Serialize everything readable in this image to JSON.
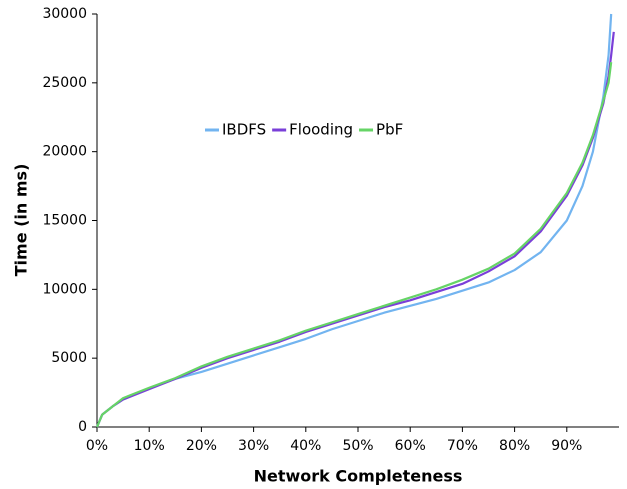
{
  "chart_data": {
    "type": "line",
    "x_label": "Network Completeness",
    "y_label": "Time (in ms)",
    "xlim": [
      0,
      100
    ],
    "ylim": [
      0,
      30000
    ],
    "xticks": [
      {
        "value": 0,
        "label": "0%"
      },
      {
        "value": 10,
        "label": "10%"
      },
      {
        "value": 20,
        "label": "20%"
      },
      {
        "value": 30,
        "label": "30%"
      },
      {
        "value": 40,
        "label": "40%"
      },
      {
        "value": 50,
        "label": "50%"
      },
      {
        "value": 60,
        "label": "60%"
      },
      {
        "value": 70,
        "label": "70%"
      },
      {
        "value": 80,
        "label": "80%"
      },
      {
        "value": 90,
        "label": "90%"
      }
    ],
    "yticks": [
      0,
      5000,
      10000,
      15000,
      20000,
      25000,
      30000
    ],
    "legend": "upper center",
    "grid": false,
    "series": [
      {
        "name": "IBDFS",
        "color": "#72b4f0",
        "x": [
          0,
          1,
          3,
          5,
          10,
          15,
          20,
          25,
          30,
          35,
          40,
          45,
          50,
          55,
          60,
          65,
          70,
          75,
          80,
          85,
          90,
          93,
          95,
          97,
          98,
          98.5
        ],
        "values": [
          0,
          900,
          1500,
          2000,
          2800,
          3500,
          4000,
          4600,
          5200,
          5800,
          6400,
          7100,
          7700,
          8300,
          8800,
          9300,
          9900,
          10500,
          11400,
          12700,
          15000,
          17500,
          20000,
          24000,
          27000,
          30000
        ]
      },
      {
        "name": "Flooding",
        "color": "#7a3fd8",
        "x": [
          0,
          1,
          3,
          5,
          10,
          15,
          20,
          25,
          30,
          35,
          40,
          45,
          50,
          55,
          60,
          65,
          70,
          75,
          80,
          85,
          90,
          93,
          95,
          97,
          98,
          98.5,
          99
        ],
        "values": [
          0,
          900,
          1500,
          2000,
          2750,
          3500,
          4300,
          5000,
          5600,
          6200,
          6900,
          7500,
          8100,
          8700,
          9200,
          9800,
          10400,
          11300,
          12400,
          14200,
          16800,
          19000,
          21000,
          23500,
          25500,
          27000,
          28700
        ]
      },
      {
        "name": "PbF",
        "color": "#66d466",
        "x": [
          0,
          1,
          3,
          5,
          10,
          15,
          20,
          25,
          30,
          35,
          40,
          45,
          50,
          55,
          60,
          65,
          70,
          75,
          80,
          85,
          90,
          93,
          95,
          97,
          98,
          98.5
        ],
        "values": [
          0,
          900,
          1500,
          2100,
          2850,
          3550,
          4400,
          5100,
          5700,
          6300,
          7000,
          7600,
          8200,
          8800,
          9400,
          10000,
          10700,
          11500,
          12600,
          14400,
          17000,
          19200,
          21200,
          23700,
          25000,
          26500
        ]
      }
    ]
  }
}
